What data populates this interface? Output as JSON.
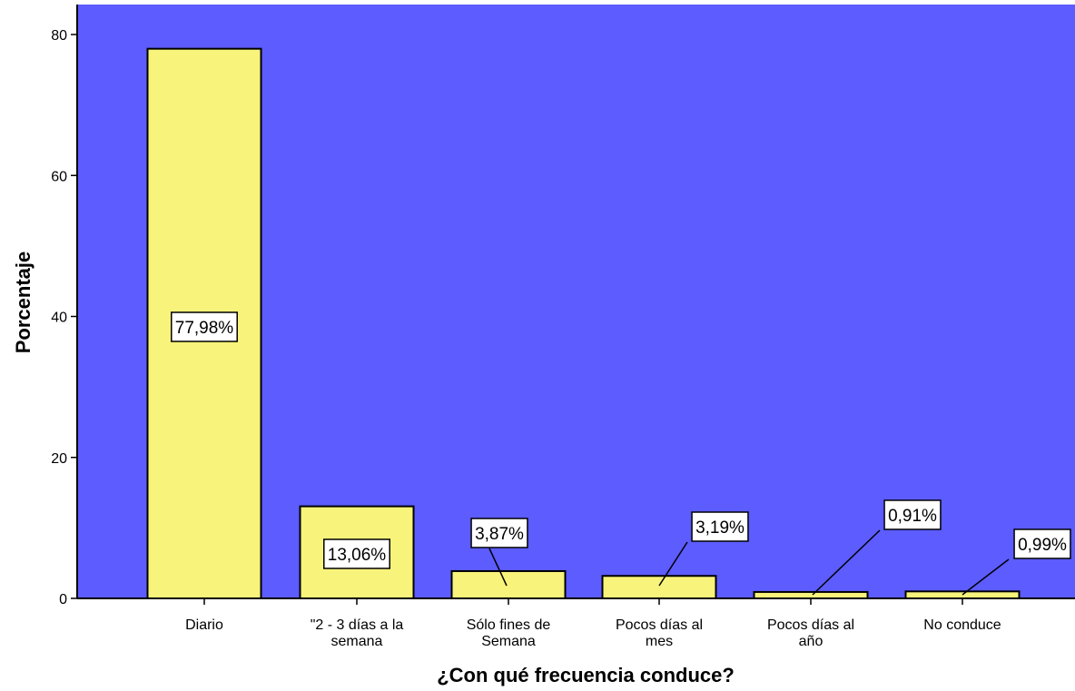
{
  "chart_data": {
    "type": "bar",
    "title": "",
    "xlabel": "¿Con qué frecuencia conduce?",
    "ylabel": "Porcentaje",
    "ylim": [
      0,
      85
    ],
    "yticks": [
      0,
      20,
      40,
      60,
      80
    ],
    "grid": false,
    "categories": [
      [
        "Diario"
      ],
      [
        "\"2 - 3  días a la",
        "semana"
      ],
      [
        "Sólo fines de",
        "Semana"
      ],
      [
        "Pocos días al",
        "mes"
      ],
      [
        "Pocos días al",
        "año"
      ],
      [
        "No conduce"
      ]
    ],
    "values": [
      77.98,
      13.06,
      3.87,
      3.19,
      0.91,
      0.99
    ],
    "data_labels": [
      "77,98%",
      "13,06%",
      "3,87%",
      "3,19%",
      "0,91%",
      "0,99%"
    ],
    "colors": {
      "plot_background": "#5c5cff",
      "bar_fill": "#f8f37a",
      "bar_stroke": "#000000"
    }
  }
}
